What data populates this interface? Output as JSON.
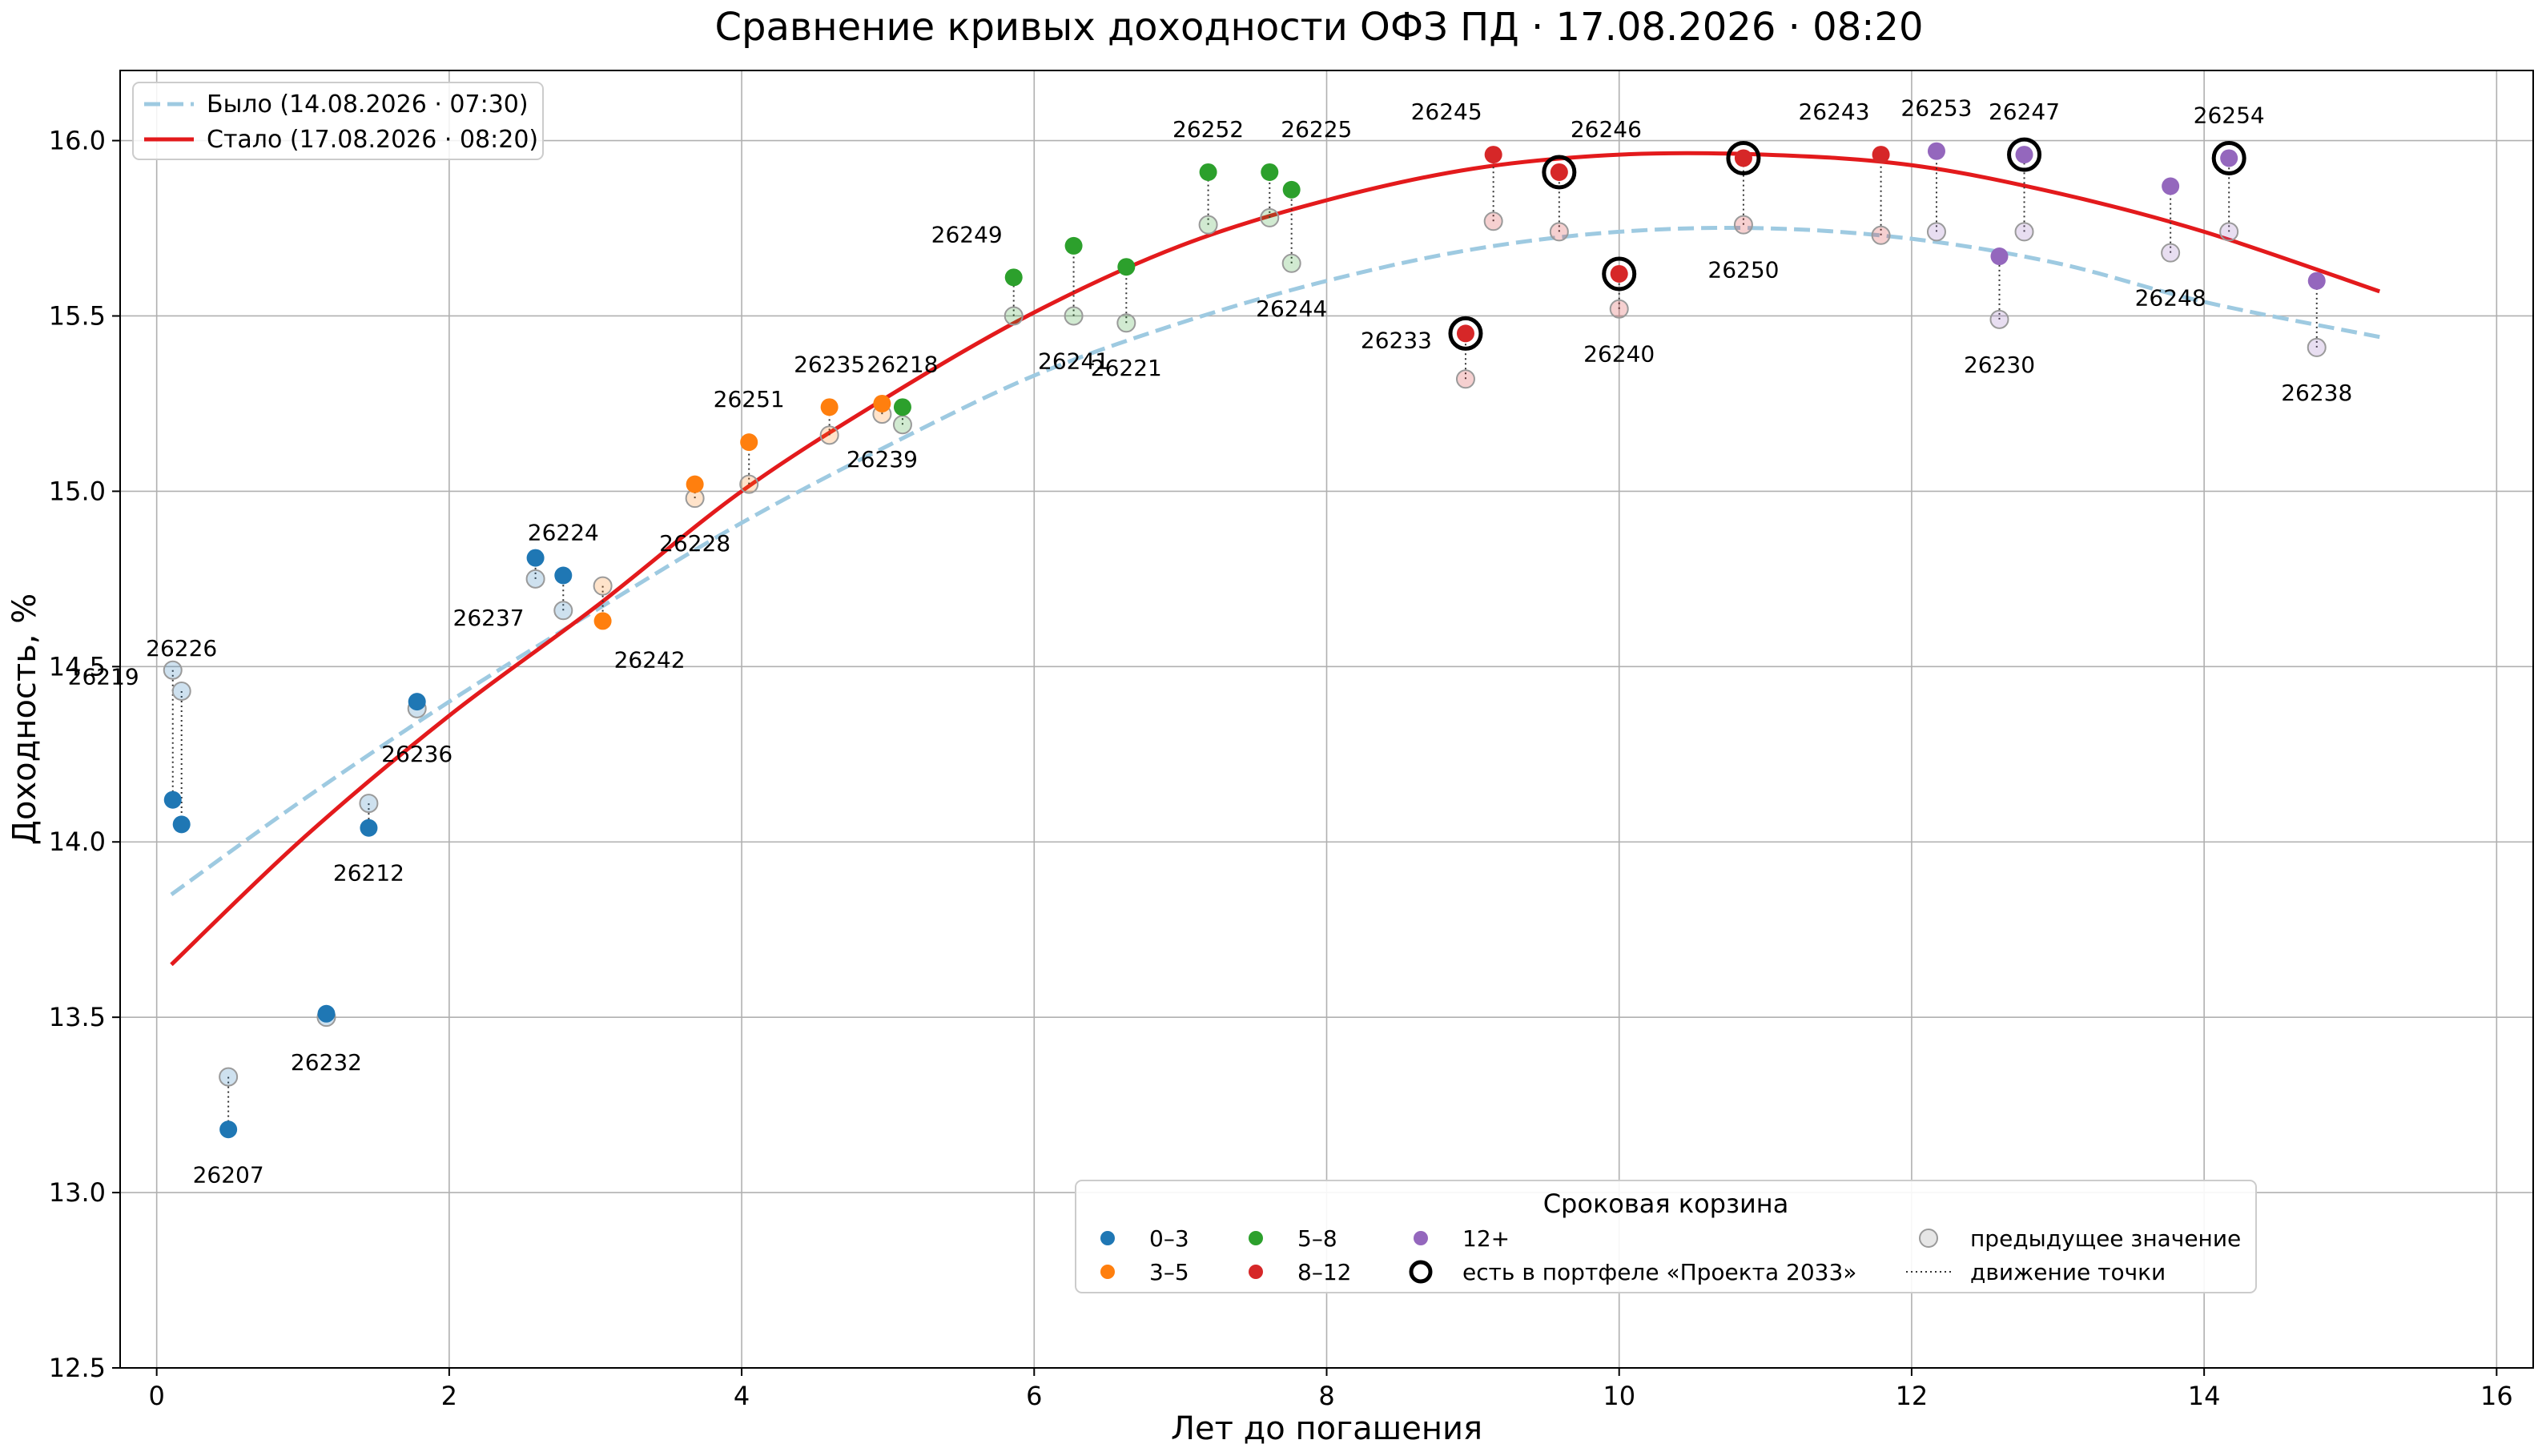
{
  "chart_data": {
    "type": "scatter",
    "title": "Сравнение кривых доходности ОФЗ ПД · 17.08.2026 · 08:20",
    "xlabel": "Лет до погашения",
    "ylabel": "Доходность, %",
    "xlim": [
      -0.25,
      16.25
    ],
    "ylim": [
      12.5,
      16.2
    ],
    "xticks": [
      0,
      2,
      4,
      6,
      8,
      10,
      12,
      14,
      16
    ],
    "yticks": [
      12.5,
      13.0,
      13.5,
      14.0,
      14.5,
      15.0,
      15.5,
      16.0
    ],
    "xtick_labels": [
      "0",
      "2",
      "4",
      "6",
      "8",
      "10",
      "12",
      "14",
      "16"
    ],
    "ytick_labels": [
      "12.5",
      "13.0",
      "13.5",
      "14.0",
      "14.5",
      "15.0",
      "15.5",
      "16.0"
    ],
    "grid": true,
    "curves": [
      {
        "name": "Было (14.08.2026 · 07:30)",
        "style": "dashed",
        "color": "#9ecae1",
        "x": [
          0.1,
          1.0,
          2.0,
          3.0,
          4.0,
          5.0,
          6.0,
          7.0,
          8.0,
          9.0,
          10.0,
          11.0,
          12.0,
          13.0,
          14.0,
          15.2
        ],
        "y": [
          13.85,
          14.12,
          14.4,
          14.66,
          14.91,
          15.13,
          15.33,
          15.48,
          15.6,
          15.69,
          15.74,
          15.75,
          15.72,
          15.65,
          15.54,
          15.44
        ]
      },
      {
        "name": "Стало (17.08.2026 · 08:20)",
        "style": "solid",
        "color": "#e31a1c",
        "x": [
          0.1,
          1.0,
          2.0,
          3.0,
          4.0,
          5.0,
          6.0,
          7.0,
          8.0,
          9.0,
          10.0,
          11.0,
          12.0,
          13.0,
          14.0,
          15.2
        ],
        "y": [
          13.65,
          14.01,
          14.36,
          14.67,
          15.0,
          15.27,
          15.51,
          15.7,
          15.83,
          15.92,
          15.96,
          15.96,
          15.93,
          15.85,
          15.74,
          15.57
        ]
      }
    ],
    "bonds": [
      {
        "name": "26219",
        "x": 0.11,
        "prev": 14.49,
        "cur": 14.12,
        "bucket": "0–3",
        "portfolio": false,
        "label_pos": "left"
      },
      {
        "name": "26226",
        "x": 0.17,
        "prev": 14.43,
        "cur": 14.05,
        "bucket": "0–3",
        "portfolio": false,
        "label_pos": "above"
      },
      {
        "name": "26207",
        "x": 0.49,
        "prev": 13.33,
        "cur": 13.18,
        "bucket": "0–3",
        "portfolio": false,
        "label_pos": "below"
      },
      {
        "name": "26232",
        "x": 1.16,
        "prev": 13.5,
        "cur": 13.51,
        "bucket": "0–3",
        "portfolio": false,
        "label_pos": "below"
      },
      {
        "name": "26212",
        "x": 1.45,
        "prev": 14.11,
        "cur": 14.04,
        "bucket": "0–3",
        "portfolio": false,
        "label_pos": "below"
      },
      {
        "name": "26236",
        "x": 1.78,
        "prev": 14.38,
        "cur": 14.4,
        "bucket": "0–3",
        "portfolio": false,
        "label_pos": "below"
      },
      {
        "name": "26237",
        "x": 2.59,
        "prev": 14.75,
        "cur": 14.81,
        "bucket": "0–3",
        "portfolio": false,
        "label_pos": "below-left"
      },
      {
        "name": "26224",
        "x": 2.78,
        "prev": 14.66,
        "cur": 14.76,
        "bucket": "0–3",
        "portfolio": false,
        "label_pos": "above"
      },
      {
        "name": "26242",
        "x": 3.05,
        "prev": 14.73,
        "cur": 14.63,
        "bucket": "3–5",
        "portfolio": false,
        "label_pos": "below-right"
      },
      {
        "name": "26228",
        "x": 3.68,
        "prev": 14.98,
        "cur": 15.02,
        "bucket": "3–5",
        "portfolio": false,
        "label_pos": "below"
      },
      {
        "name": "26251",
        "x": 4.05,
        "prev": 15.02,
        "cur": 15.14,
        "bucket": "3–5",
        "portfolio": false,
        "label_pos": "above"
      },
      {
        "name": "26235",
        "x": 4.6,
        "prev": 15.16,
        "cur": 15.24,
        "bucket": "3–5",
        "portfolio": false,
        "label_pos": "above"
      },
      {
        "name": "26239",
        "x": 4.96,
        "prev": 15.22,
        "cur": 15.25,
        "bucket": "3–5",
        "portfolio": false,
        "label_pos": "below"
      },
      {
        "name": "26218",
        "x": 5.1,
        "prev": 15.19,
        "cur": 15.24,
        "bucket": "5–8",
        "portfolio": false,
        "label_pos": "above"
      },
      {
        "name": "26249",
        "x": 5.86,
        "prev": 15.5,
        "cur": 15.61,
        "bucket": "5–8",
        "portfolio": false,
        "label_pos": "above-left"
      },
      {
        "name": "26241",
        "x": 6.27,
        "prev": 15.5,
        "cur": 15.7,
        "bucket": "5–8",
        "portfolio": false,
        "label_pos": "below"
      },
      {
        "name": "26221",
        "x": 6.63,
        "prev": 15.48,
        "cur": 15.64,
        "bucket": "5–8",
        "portfolio": false,
        "label_pos": "below"
      },
      {
        "name": "26252",
        "x": 7.19,
        "prev": 15.76,
        "cur": 15.91,
        "bucket": "5–8",
        "portfolio": false,
        "label_pos": "above"
      },
      {
        "name": "26225",
        "x": 7.61,
        "prev": 15.78,
        "cur": 15.91,
        "bucket": "5–8",
        "portfolio": false,
        "label_pos": "above-right"
      },
      {
        "name": "26244",
        "x": 7.76,
        "prev": 15.65,
        "cur": 15.86,
        "bucket": "5–8",
        "portfolio": false,
        "label_pos": "below"
      },
      {
        "name": "26233",
        "x": 8.95,
        "prev": 15.32,
        "cur": 15.45,
        "bucket": "8–12",
        "portfolio": true,
        "label_pos": "left"
      },
      {
        "name": "26245",
        "x": 9.14,
        "prev": 15.77,
        "cur": 15.96,
        "bucket": "8–12",
        "portfolio": false,
        "label_pos": "above-left"
      },
      {
        "name": "26246",
        "x": 9.59,
        "prev": 15.74,
        "cur": 15.91,
        "bucket": "8–12",
        "portfolio": true,
        "label_pos": "above-right"
      },
      {
        "name": "26240",
        "x": 10.0,
        "prev": 15.52,
        "cur": 15.62,
        "bucket": "8–12",
        "portfolio": true,
        "label_pos": "below"
      },
      {
        "name": "26250",
        "x": 10.85,
        "prev": 15.76,
        "cur": 15.95,
        "bucket": "8–12",
        "portfolio": true,
        "label_pos": "below"
      },
      {
        "name": "26243",
        "x": 11.79,
        "prev": 15.73,
        "cur": 15.96,
        "bucket": "8–12",
        "portfolio": false,
        "label_pos": "above-left"
      },
      {
        "name": "26253",
        "x": 12.17,
        "prev": 15.74,
        "cur": 15.97,
        "bucket": "12+",
        "portfolio": false,
        "label_pos": "above"
      },
      {
        "name": "26230",
        "x": 12.6,
        "prev": 15.49,
        "cur": 15.67,
        "bucket": "12+",
        "portfolio": false,
        "label_pos": "below"
      },
      {
        "name": "26247",
        "x": 12.77,
        "prev": 15.74,
        "cur": 15.96,
        "bucket": "12+",
        "portfolio": true,
        "label_pos": "above"
      },
      {
        "name": "26248",
        "x": 13.77,
        "prev": 15.68,
        "cur": 15.87,
        "bucket": "12+",
        "portfolio": false,
        "label_pos": "below"
      },
      {
        "name": "26254",
        "x": 14.17,
        "prev": 15.74,
        "cur": 15.95,
        "bucket": "12+",
        "portfolio": true,
        "label_pos": "above"
      },
      {
        "name": "26238",
        "x": 14.77,
        "prev": 15.41,
        "cur": 15.6,
        "bucket": "12+",
        "portfolio": false,
        "label_pos": "below"
      }
    ],
    "bucket_colors": {
      "0–3": "#1f77b4",
      "3–5": "#ff7f0e",
      "5–8": "#2ca02c",
      "8–12": "#d62728",
      "12+": "#9467bd"
    },
    "legend_curves": {
      "placement": "top-left",
      "items": [
        "Было (14.08.2026 · 07:30)",
        "Стало (17.08.2026 · 08:20)"
      ]
    },
    "legend_buckets": {
      "placement": "lower-center",
      "title": "Сроковая корзина",
      "items": [
        "0–3",
        "3–5",
        "5–8",
        "8–12",
        "12+"
      ],
      "portfolio_label": "есть в портфеле «Проекта 2033»",
      "prev_label": "предыдущее значение",
      "move_label": "движение точки"
    }
  }
}
